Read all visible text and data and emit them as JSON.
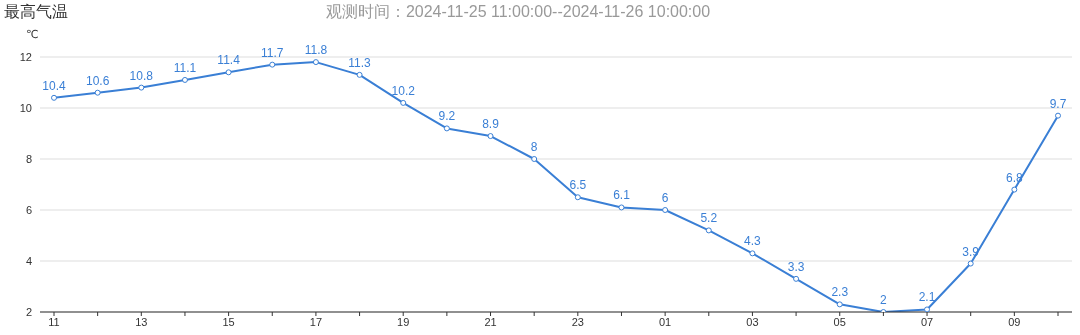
{
  "chart_data": {
    "type": "line",
    "title": "最高气温",
    "subtitle": "观测时间：2024-11-25 11:00:00--2024-11-26 10:00:00",
    "ylabel": "℃",
    "categories": [
      "11",
      null,
      "13",
      null,
      "15",
      null,
      "17",
      null,
      "19",
      null,
      "21",
      null,
      "23",
      null,
      "01",
      null,
      "03",
      null,
      "05",
      null,
      "07",
      null,
      "09",
      null
    ],
    "series": [
      {
        "color": "#3a7fd5",
        "values": [
          10.4,
          10.6,
          10.8,
          11.1,
          11.4,
          11.7,
          11.8,
          11.3,
          10.2,
          9.2,
          8.9,
          8,
          6.5,
          6.1,
          6,
          5.2,
          4.3,
          3.3,
          2.3,
          2,
          2.1,
          3.9,
          6.8,
          9.7
        ]
      }
    ],
    "ylim": [
      2,
      12
    ],
    "yticks": [
      2,
      4,
      6,
      8,
      10,
      12
    ],
    "grid": "y",
    "marker": "circle",
    "line_style": "solid",
    "data_labels": true,
    "legend": false
  }
}
